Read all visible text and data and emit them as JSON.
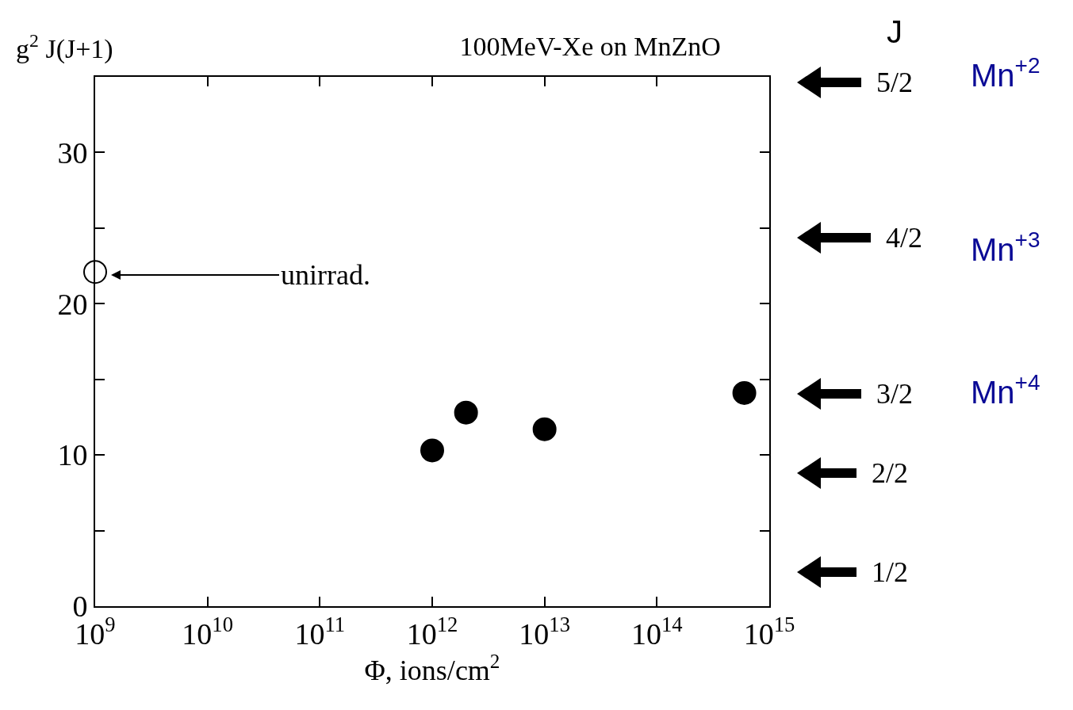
{
  "chart_data": {
    "type": "scatter",
    "title": "100MeV-Xe on MnZnO",
    "xlabel": "Φ, ions/cm$^{2}$",
    "ylabel": "g$^{2}$ J(J+1)",
    "log": "x",
    "grid": false,
    "marker": "circle",
    "xlim": [
      1000000000.0,
      1000000000000000.0
    ],
    "xticks": [
      {
        "value": 1000000000.0,
        "label": "10$^{9}$"
      },
      {
        "value": 10000000000.0,
        "label": "10$^{10}$"
      },
      {
        "value": 100000000000.0,
        "label": "10$^{11}$"
      },
      {
        "value": 1000000000000.0,
        "label": "10$^{12}$"
      },
      {
        "value": 10000000000000.0,
        "label": "10$^{13}$"
      },
      {
        "value": 100000000000000.0,
        "label": "10$^{14}$"
      },
      {
        "value": 1000000000000000.0,
        "label": "10$^{15}$"
      }
    ],
    "ylim": [
      0,
      35
    ],
    "yticks": [
      0,
      {
        "value": 5,
        "label": null
      },
      10,
      {
        "value": 15,
        "label": null
      },
      20,
      {
        "value": 25,
        "label": null
      },
      30
    ],
    "series": [
      {
        "color": "#ffffff",
        "x": [
          1000000000.0
        ],
        "values": [
          22.1
        ]
      },
      {
        "color": "#000000",
        "x": [
          1000000000000.0,
          2000000000000.0,
          10000000000000.0,
          600000000000000.0
        ],
        "values": [
          10.3,
          12.8,
          11.7,
          14.1
        ]
      }
    ],
    "annotations": [
      "unirrad.",
      "J",
      "5/2",
      "4/2",
      "3/2",
      "2/2",
      "1/2",
      "Mn$^{+2}$",
      "Mn$^{+3}$",
      "Mn$^{+4}$"
    ]
  }
}
